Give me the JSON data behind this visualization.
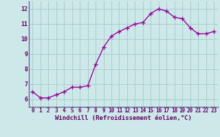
{
  "x": [
    0,
    1,
    2,
    3,
    4,
    5,
    6,
    7,
    8,
    9,
    10,
    11,
    12,
    13,
    14,
    15,
    16,
    17,
    18,
    19,
    20,
    21,
    22,
    23
  ],
  "y": [
    6.5,
    6.1,
    6.1,
    6.3,
    6.5,
    6.8,
    6.8,
    6.9,
    8.3,
    9.45,
    10.2,
    10.5,
    10.75,
    11.0,
    11.1,
    11.7,
    12.0,
    11.85,
    11.45,
    11.35,
    10.75,
    10.35,
    10.35,
    10.5
  ],
  "line_color": "#990099",
  "marker": "+",
  "marker_color": "#990099",
  "background_color": "#cce8e8",
  "grid_color": "#aacccc",
  "xlabel": "Windchill (Refroidissement éolien,°C)",
  "xlabel_color": "#660066",
  "tick_color": "#660066",
  "ylim": [
    5.5,
    12.5
  ],
  "xlim": [
    -0.5,
    23.5
  ],
  "yticks": [
    6,
    7,
    8,
    9,
    10,
    11,
    12
  ],
  "xticks": [
    0,
    1,
    2,
    3,
    4,
    5,
    6,
    7,
    8,
    9,
    10,
    11,
    12,
    13,
    14,
    15,
    16,
    17,
    18,
    19,
    20,
    21,
    22,
    23
  ],
  "linewidth": 1.0,
  "markersize": 4,
  "tick_fontsize": 5.5,
  "xlabel_fontsize": 6.5
}
